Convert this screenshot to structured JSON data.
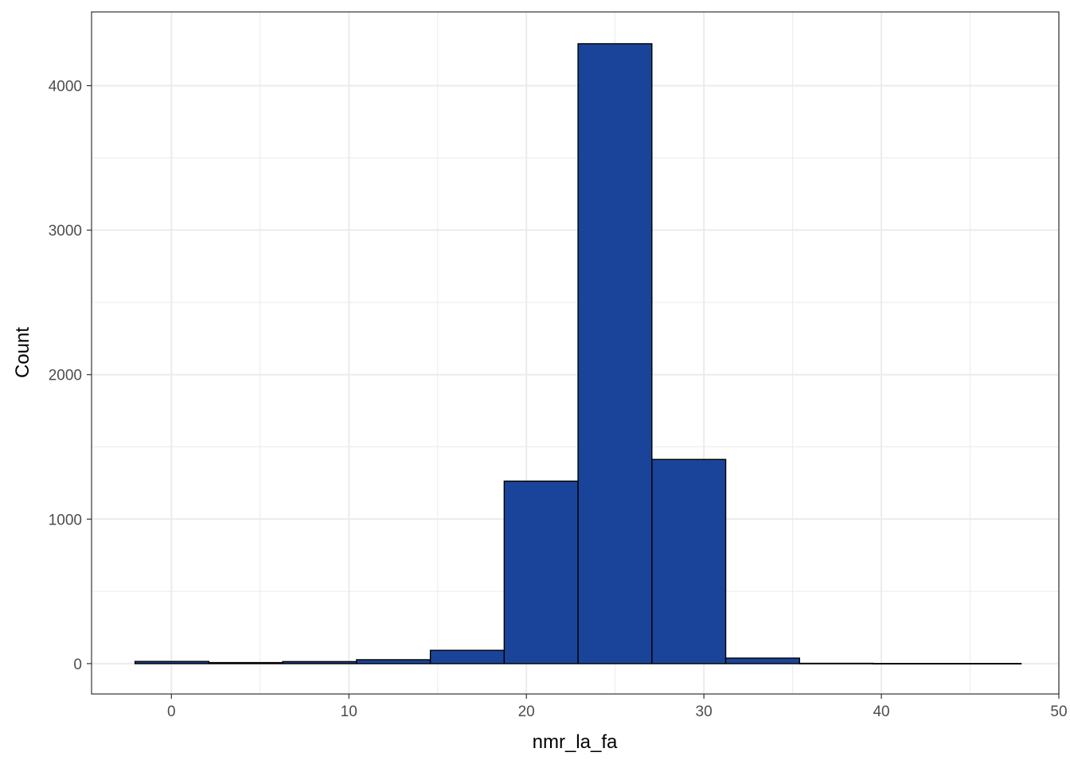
{
  "chart_data": {
    "type": "bar",
    "subtype": "histogram",
    "xlabel": "nmr_la_fa",
    "ylabel": "Count",
    "xlim": [
      -4.5,
      50
    ],
    "ylim": [
      -210,
      4510
    ],
    "x_ticks": [
      0,
      10,
      20,
      30,
      40,
      50
    ],
    "y_ticks": [
      0,
      1000,
      2000,
      3000,
      4000
    ],
    "x_minor_grid": [
      5,
      15,
      25,
      35,
      45
    ],
    "y_minor_grid": [
      500,
      1500,
      2500,
      3500
    ],
    "grid": true,
    "theme": "bw",
    "bar_fill": "#1a4499",
    "bar_stroke": "#000000",
    "bins": [
      {
        "x0": -2.05,
        "x1": 2.11,
        "count": 15
      },
      {
        "x0": 2.11,
        "x1": 6.27,
        "count": 7
      },
      {
        "x0": 6.27,
        "x1": 10.43,
        "count": 14
      },
      {
        "x0": 10.43,
        "x1": 14.59,
        "count": 27
      },
      {
        "x0": 14.59,
        "x1": 18.75,
        "count": 92
      },
      {
        "x0": 18.75,
        "x1": 22.91,
        "count": 1263
      },
      {
        "x0": 22.91,
        "x1": 27.07,
        "count": 4290
      },
      {
        "x0": 27.07,
        "x1": 31.23,
        "count": 1413
      },
      {
        "x0": 31.23,
        "x1": 35.39,
        "count": 38
      },
      {
        "x0": 35.39,
        "x1": 39.55,
        "count": 2
      },
      {
        "x0": 39.55,
        "x1": 43.71,
        "count": 1
      },
      {
        "x0": 43.71,
        "x1": 47.87,
        "count": 1
      }
    ]
  }
}
